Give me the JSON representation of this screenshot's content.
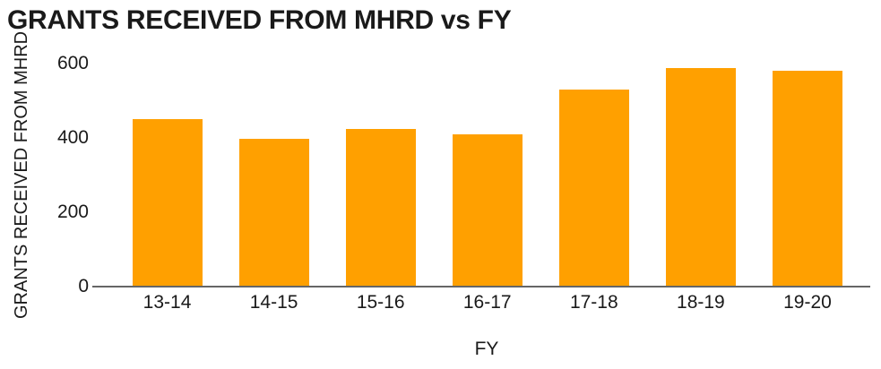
{
  "chart_data": {
    "type": "bar",
    "title": "GRANTS RECEIVED FROM MHRD vs FY",
    "xlabel": "FY",
    "ylabel": "GRANTS RECEIVED FROM MHRD",
    "categories": [
      "13-14",
      "14-15",
      "15-16",
      "16-17",
      "17-18",
      "18-19",
      "19-20"
    ],
    "values": [
      450,
      396,
      422,
      409,
      528,
      586,
      580
    ],
    "yticks": [
      0,
      200,
      400,
      600
    ],
    "ylim": [
      0,
      600
    ],
    "grid": false,
    "legend": false,
    "bar_color": "#FFA000",
    "axis_line_color": "#666666",
    "text_color": "#1A1A1A",
    "background_color": "#FFFFFF"
  }
}
